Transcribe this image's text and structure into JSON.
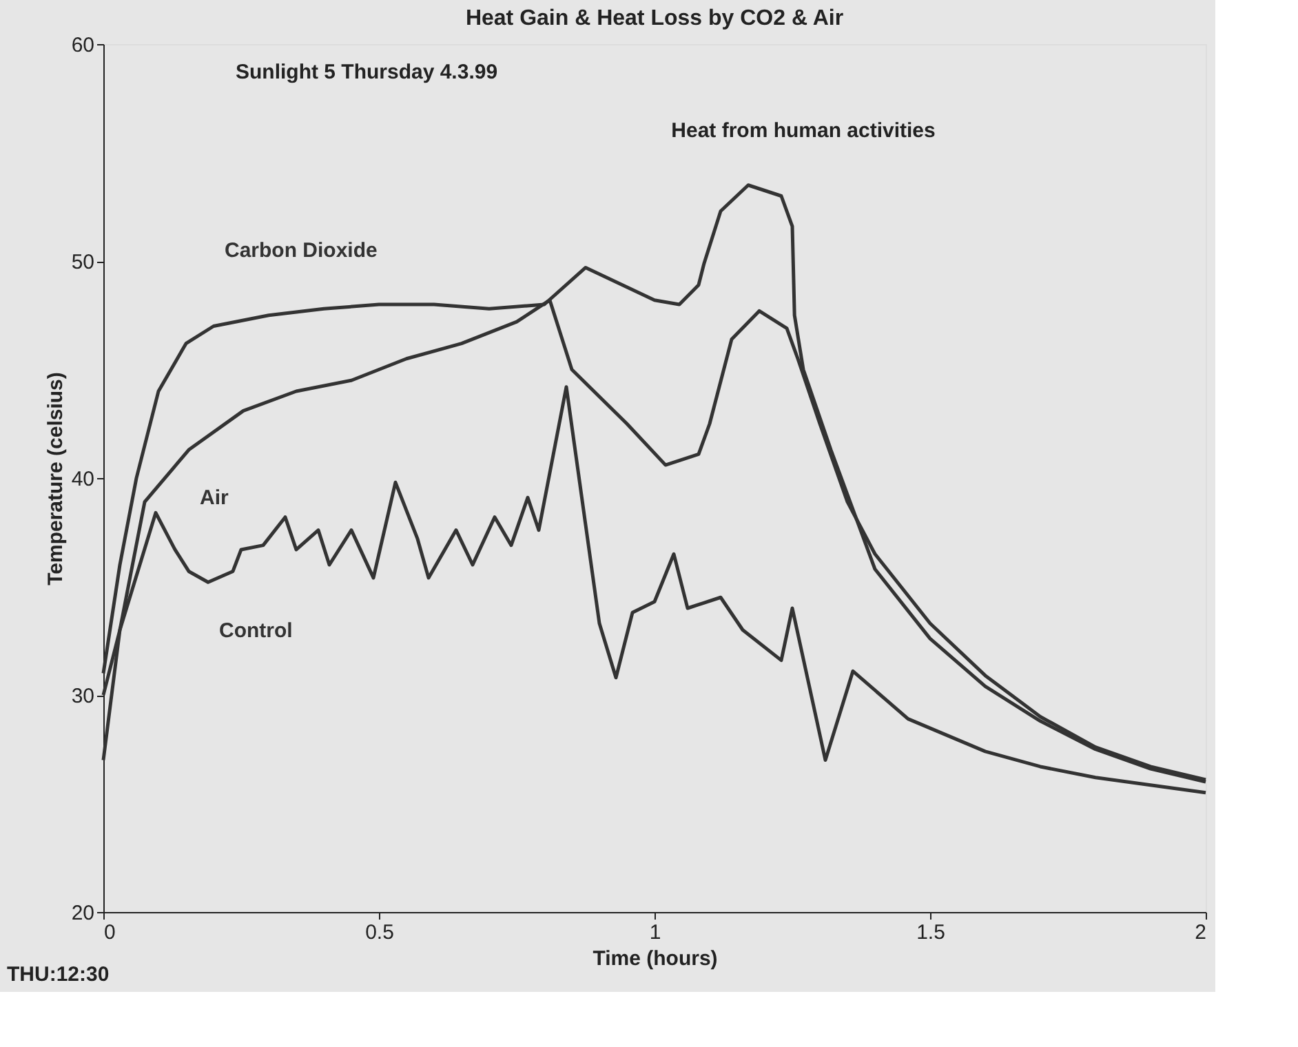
{
  "chart_data": {
    "type": "line",
    "title": "Heat Gain & Heat Loss by CO2 & Air",
    "xlabel": "Time (hours)",
    "ylabel": "Temperature (celsius)",
    "xlim": [
      0,
      2
    ],
    "ylim": [
      20,
      60
    ],
    "xticks": [
      0,
      0.5,
      1,
      1.5,
      2
    ],
    "yticks": [
      20,
      30,
      40,
      50,
      60
    ],
    "grid": false,
    "marker": "none",
    "line_style": "solid",
    "annotations": [
      "Sunlight 5 Thursday 4.3.99",
      {
        "text": "Heat from human activities",
        "x": 1.17,
        "y": 53.5
      },
      "THU:12:30"
    ],
    "series": [
      {
        "name": "Carbon Dioxide",
        "color": "#333333",
        "x": [
          0,
          0.03,
          0.06,
          0.1,
          0.15,
          0.2,
          0.3,
          0.4,
          0.5,
          0.6,
          0.7,
          0.8,
          0.875,
          1.0,
          1.045,
          1.08,
          1.09,
          1.12,
          1.17,
          1.23,
          1.25,
          1.254,
          1.27,
          1.32,
          1.4,
          1.5,
          1.6,
          1.7,
          1.8,
          1.9,
          2.0
        ],
        "values": [
          31,
          36,
          40,
          44,
          46.2,
          47,
          47.5,
          47.8,
          48,
          48,
          47.8,
          48,
          49.7,
          48.2,
          48,
          48.9,
          49.9,
          52.3,
          53.5,
          53,
          51.6,
          47.5,
          45,
          41.3,
          35.8,
          32.6,
          30.4,
          28.8,
          27.5,
          26.6,
          26
        ]
      },
      {
        "name": "Air",
        "color": "#333333",
        "x": [
          0,
          0.03,
          0.075,
          0.155,
          0.254,
          0.35,
          0.45,
          0.55,
          0.65,
          0.75,
          0.81,
          0.85,
          0.95,
          1.02,
          1.08,
          1.1,
          1.14,
          1.19,
          1.24,
          1.26,
          1.3,
          1.35,
          1.4,
          1.5,
          1.6,
          1.7,
          1.8,
          1.9,
          2.0
        ],
        "values": [
          30,
          33,
          38.9,
          41.3,
          43.1,
          44,
          44.5,
          45.5,
          46.2,
          47.2,
          48.2,
          45,
          42.5,
          40.6,
          41.1,
          42.5,
          46.4,
          47.7,
          46.9,
          45.5,
          42.5,
          38.9,
          36.5,
          33.3,
          30.9,
          29,
          27.6,
          26.7,
          26.1
        ]
      },
      {
        "name": "Control",
        "color": "#333333",
        "x": [
          0,
          0.03,
          0.095,
          0.13,
          0.155,
          0.19,
          0.235,
          0.25,
          0.29,
          0.33,
          0.35,
          0.39,
          0.41,
          0.45,
          0.49,
          0.53,
          0.57,
          0.59,
          0.64,
          0.67,
          0.71,
          0.74,
          0.77,
          0.79,
          0.84,
          0.9,
          0.93,
          0.96,
          1.0,
          1.035,
          1.06,
          1.12,
          1.16,
          1.23,
          1.25,
          1.31,
          1.36,
          1.46,
          1.6,
          1.7,
          1.8,
          2.0
        ],
        "values": [
          27,
          33,
          38.4,
          36.7,
          35.7,
          35.2,
          35.7,
          36.7,
          36.9,
          38.2,
          36.7,
          37.6,
          36,
          37.6,
          35.4,
          39.8,
          37.2,
          35.4,
          37.6,
          36,
          38.2,
          36.9,
          39.1,
          37.6,
          44.2,
          33.3,
          30.8,
          33.8,
          34.3,
          36.5,
          34,
          34.5,
          33,
          31.6,
          34,
          27,
          31.1,
          28.9,
          27.4,
          26.7,
          26.2,
          25.5
        ]
      }
    ]
  }
}
